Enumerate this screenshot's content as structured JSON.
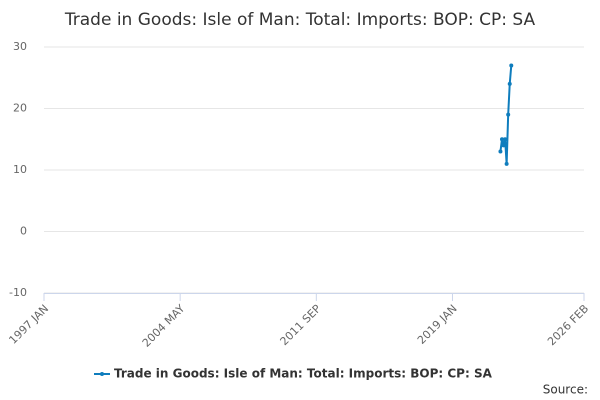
{
  "chart_data": {
    "type": "line",
    "title": "Trade in Goods: Isle of Man: Total: Imports: BOP: CP: SA",
    "source": "Source:",
    "x": [
      "2021 AUG",
      "2021 SEP",
      "2021 OCT",
      "2021 NOV",
      "2021 DEC",
      "2022 JAN",
      "2022 FEB",
      "2022 MAR"
    ],
    "series": [
      {
        "name": "Trade in Goods: Isle of Man: Total: Imports: BOP: CP: SA",
        "color": "#0f7dbd",
        "values": [
          13,
          15,
          14,
          15,
          11,
          19,
          24,
          27
        ]
      }
    ],
    "xlim": [
      "1997 JAN",
      "2026 FEB"
    ],
    "xticks": [
      "1997 JAN",
      "2004 MAY",
      "2011 SEP",
      "2019 JAN",
      "2026 FEB"
    ],
    "ylim": [
      -10,
      30
    ],
    "yticks": [
      -10,
      0,
      10,
      20,
      30
    ],
    "grid": true,
    "legend": "bottom"
  }
}
